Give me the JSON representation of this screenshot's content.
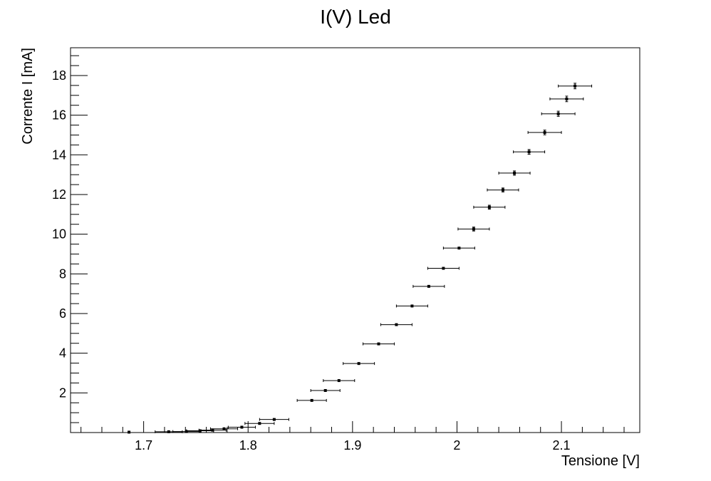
{
  "chart_data": {
    "type": "scatter",
    "title": "I(V) Led",
    "xlabel": "Tensione [V]",
    "ylabel": "Corrente I [mA]",
    "xlim": [
      1.63,
      2.175
    ],
    "ylim": [
      0,
      19.4
    ],
    "x_ticks": [
      1.7,
      1.8,
      1.9,
      2.0,
      2.1
    ],
    "x_tick_labels": [
      "1.7",
      "1.8",
      "1.9",
      "2",
      "2.1"
    ],
    "y_ticks": [
      2,
      4,
      6,
      8,
      10,
      12,
      14,
      16,
      18
    ],
    "y_tick_labels": [
      "2",
      "4",
      "6",
      "8",
      "10",
      "12",
      "14",
      "16",
      "18"
    ],
    "grid": false,
    "legend": "none",
    "error_bars": true,
    "series": [
      {
        "points": [
          {
            "x": 1.686,
            "y": 0.02,
            "xerr": 0.0,
            "yerr": 0.0
          },
          {
            "x": 1.724,
            "y": 0.04,
            "xerr": 0.013,
            "yerr": 0.0
          },
          {
            "x": 1.741,
            "y": 0.05,
            "xerr": 0.013,
            "yerr": 0.0
          },
          {
            "x": 1.754,
            "y": 0.09,
            "xerr": 0.013,
            "yerr": 0.0
          },
          {
            "x": 1.766,
            "y": 0.12,
            "xerr": 0.013,
            "yerr": 0.0
          },
          {
            "x": 1.777,
            "y": 0.19,
            "xerr": 0.013,
            "yerr": 0.0
          },
          {
            "x": 1.794,
            "y": 0.27,
            "xerr": 0.013,
            "yerr": 0.0
          },
          {
            "x": 1.811,
            "y": 0.46,
            "xerr": 0.014,
            "yerr": 0.0
          },
          {
            "x": 1.825,
            "y": 0.66,
            "xerr": 0.014,
            "yerr": 0.0
          },
          {
            "x": 1.861,
            "y": 1.62,
            "xerr": 0.014,
            "yerr": 0.0
          },
          {
            "x": 1.874,
            "y": 2.12,
            "xerr": 0.014,
            "yerr": 0.0
          },
          {
            "x": 1.887,
            "y": 2.62,
            "xerr": 0.015,
            "yerr": 0.0
          },
          {
            "x": 1.906,
            "y": 3.48,
            "xerr": 0.015,
            "yerr": 0.0
          },
          {
            "x": 1.925,
            "y": 4.47,
            "xerr": 0.015,
            "yerr": 0.0
          },
          {
            "x": 1.942,
            "y": 5.44,
            "xerr": 0.015,
            "yerr": 0.0
          },
          {
            "x": 1.957,
            "y": 6.38,
            "xerr": 0.015,
            "yerr": 0.0
          },
          {
            "x": 1.973,
            "y": 7.37,
            "xerr": 0.015,
            "yerr": 0.0
          },
          {
            "x": 1.987,
            "y": 8.28,
            "xerr": 0.015,
            "yerr": 0.0
          },
          {
            "x": 2.002,
            "y": 9.3,
            "xerr": 0.015,
            "yerr": 0.0
          },
          {
            "x": 2.016,
            "y": 10.26,
            "xerr": 0.015,
            "yerr": 0.1
          },
          {
            "x": 2.031,
            "y": 11.36,
            "xerr": 0.015,
            "yerr": 0.1
          },
          {
            "x": 2.044,
            "y": 12.23,
            "xerr": 0.015,
            "yerr": 0.1
          },
          {
            "x": 2.055,
            "y": 13.08,
            "xerr": 0.015,
            "yerr": 0.11
          },
          {
            "x": 2.069,
            "y": 14.15,
            "xerr": 0.015,
            "yerr": 0.12
          },
          {
            "x": 2.084,
            "y": 15.13,
            "xerr": 0.016,
            "yerr": 0.12
          },
          {
            "x": 2.097,
            "y": 16.07,
            "xerr": 0.016,
            "yerr": 0.13
          },
          {
            "x": 2.105,
            "y": 16.82,
            "xerr": 0.016,
            "yerr": 0.14
          },
          {
            "x": 2.113,
            "y": 17.47,
            "xerr": 0.016,
            "yerr": 0.14
          }
        ]
      }
    ]
  }
}
